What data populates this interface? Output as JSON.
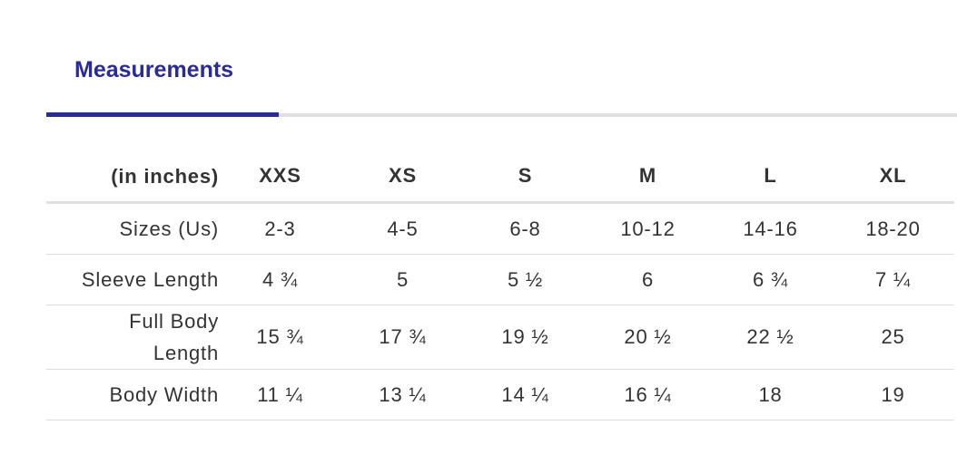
{
  "tab": {
    "label": "Measurements"
  },
  "table": {
    "header": [
      "(in inches)",
      "XXS",
      "XS",
      "S",
      "M",
      "L",
      "XL"
    ],
    "rows": [
      [
        "Sizes (Us)",
        "2-3",
        "4-5",
        "6-8",
        "10-12",
        "14-16",
        "18-20"
      ],
      [
        "Sleeve Length",
        "4 ¾",
        "5",
        "5 ½",
        "6",
        "6 ¾",
        "7 ¼"
      ],
      [
        "Full Body Length",
        "15 ¾",
        "17 ¾",
        "19 ½",
        "20 ½",
        "22 ½",
        "25"
      ],
      [
        "Body Width",
        "11 ¼",
        "13 ¼",
        "14 ¼",
        "16 ¼",
        "18",
        "19"
      ]
    ]
  }
}
